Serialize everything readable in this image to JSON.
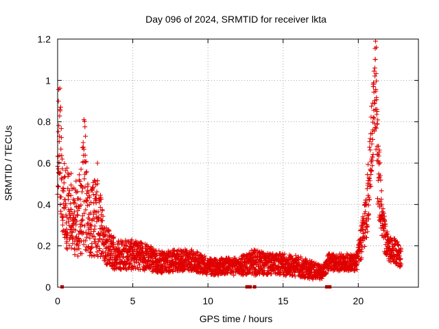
{
  "chart_data": {
    "type": "scatter",
    "title": "Day 096 of 2024, SRMTID for receiver lkta",
    "xlabel": "GPS time / hours",
    "ylabel": "SRMTID / TECUs",
    "xlim": [
      0,
      24
    ],
    "ylim": [
      0,
      1.2
    ],
    "xticks": [
      0,
      5,
      10,
      15,
      20
    ],
    "xtick_labels": [
      "0",
      "5",
      "10",
      "15",
      "20"
    ],
    "yticks": [
      0,
      0.2,
      0.4,
      0.6,
      0.8,
      1.0,
      1.2
    ],
    "ytick_labels": [
      "0",
      "0.2",
      "0.4",
      "0.6",
      "0.8",
      "1",
      "1.2"
    ],
    "grid": true,
    "marker": "plus",
    "color": "#e00000",
    "series": [
      {
        "name": "SRMTID",
        "profile": [
          [
            0.0,
            0.55,
            0.25
          ],
          [
            0.1,
            0.8,
            0.3
          ],
          [
            0.3,
            0.45,
            0.2
          ],
          [
            0.6,
            0.38,
            0.2
          ],
          [
            1.0,
            0.32,
            0.15
          ],
          [
            1.5,
            0.35,
            0.2
          ],
          [
            1.8,
            0.5,
            0.3
          ],
          [
            2.1,
            0.3,
            0.15
          ],
          [
            2.6,
            0.35,
            0.2
          ],
          [
            3.0,
            0.25,
            0.12
          ],
          [
            3.5,
            0.18,
            0.08
          ],
          [
            4.0,
            0.15,
            0.07
          ],
          [
            5.0,
            0.16,
            0.07
          ],
          [
            6.0,
            0.14,
            0.06
          ],
          [
            7.0,
            0.12,
            0.05
          ],
          [
            8.0,
            0.13,
            0.05
          ],
          [
            9.0,
            0.13,
            0.05
          ],
          [
            10.0,
            0.1,
            0.04
          ],
          [
            11.0,
            0.1,
            0.04
          ],
          [
            12.0,
            0.1,
            0.04
          ],
          [
            13.0,
            0.12,
            0.06
          ],
          [
            14.0,
            0.11,
            0.05
          ],
          [
            15.0,
            0.11,
            0.05
          ],
          [
            16.0,
            0.1,
            0.05
          ],
          [
            17.0,
            0.08,
            0.04
          ],
          [
            17.6,
            0.07,
            0.03
          ],
          [
            18.0,
            0.12,
            0.04
          ],
          [
            19.0,
            0.12,
            0.04
          ],
          [
            19.9,
            0.12,
            0.04
          ],
          [
            20.3,
            0.25,
            0.1
          ],
          [
            20.6,
            0.4,
            0.15
          ],
          [
            20.9,
            0.7,
            0.2
          ],
          [
            21.1,
            1.0,
            0.2
          ],
          [
            21.3,
            0.6,
            0.2
          ],
          [
            21.6,
            0.3,
            0.1
          ],
          [
            22.0,
            0.18,
            0.06
          ],
          [
            22.5,
            0.17,
            0.06
          ],
          [
            22.8,
            0.15,
            0.05
          ]
        ],
        "peaks": [
          {
            "x": 0.05,
            "y": 0.9
          },
          {
            "x": 0.15,
            "y": 0.86
          },
          {
            "x": 0.9,
            "y": 0.55
          },
          {
            "x": 1.75,
            "y": 0.81
          },
          {
            "x": 1.85,
            "y": 0.73
          },
          {
            "x": 2.65,
            "y": 0.6
          },
          {
            "x": 21.0,
            "y": 0.97
          },
          {
            "x": 21.15,
            "y": 1.19
          },
          {
            "x": 21.2,
            "y": 1.16
          },
          {
            "x": 21.1,
            "y": 1.06
          },
          {
            "x": 21.25,
            "y": 0.85
          }
        ],
        "x_range": [
          0.0,
          22.85
        ]
      }
    ],
    "data_gaps_at_zero": [
      0.3,
      12.6,
      12.8,
      13.1,
      17.9,
      18.1
    ]
  }
}
